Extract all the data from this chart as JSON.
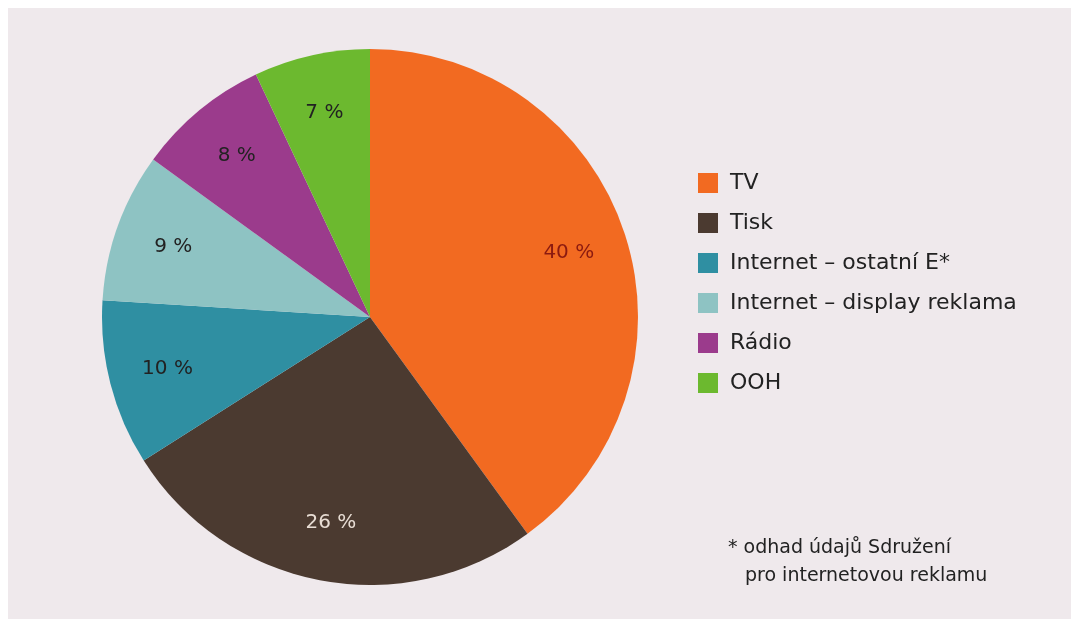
{
  "chart_data": {
    "type": "pie",
    "categories": [
      "TV",
      "Tisk",
      "Internet – ostatní E*",
      "Internet – display reklama",
      "Rádio",
      "OOH"
    ],
    "values": [
      40,
      26,
      10,
      9,
      8,
      7
    ],
    "colors": [
      "#f26a21",
      "#4b3a30",
      "#2f8fa2",
      "#8ec3c3",
      "#9b3b8c",
      "#6cb92f"
    ],
    "value_labels": [
      "40 %",
      "26 %",
      "10 %",
      "9 %",
      "8 %",
      "7 %"
    ],
    "legend": "right",
    "annotations": [
      "* odhad údajů Sdružení pro internetovou reklamu"
    ]
  }
}
